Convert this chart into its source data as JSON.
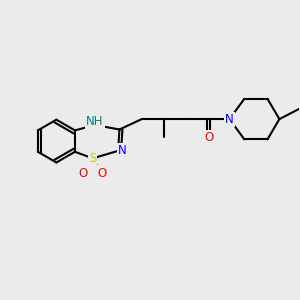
{
  "bg_color": "#ebebeb",
  "bond_color": "#000000",
  "bond_width": 1.5,
  "atom_colors": {
    "N": "#0000ff",
    "O": "#ff0000",
    "S": "#cccc00",
    "NH_color": "#008080",
    "C": "#000000"
  },
  "font_size": 8.5,
  "fig_width": 3.0,
  "fig_height": 3.0
}
